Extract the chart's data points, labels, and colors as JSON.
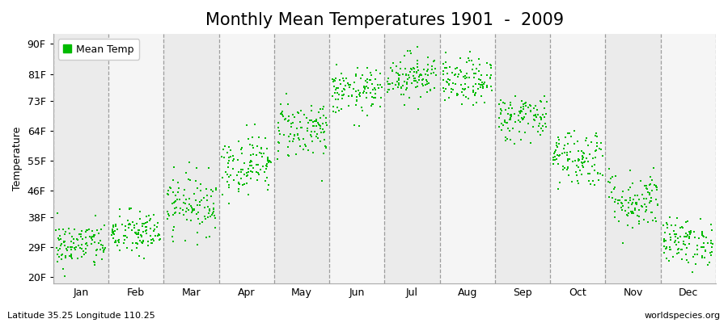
{
  "title": "Monthly Mean Temperatures 1901  -  2009",
  "ylabel": "Temperature",
  "yticks": [
    20,
    29,
    38,
    46,
    55,
    64,
    73,
    81,
    90
  ],
  "ytick_labels": [
    "20F",
    "29F",
    "38F",
    "46F",
    "55F",
    "64F",
    "73F",
    "81F",
    "90F"
  ],
  "ylim": [
    18,
    93
  ],
  "months": [
    "Jan",
    "Feb",
    "Mar",
    "Apr",
    "May",
    "Jun",
    "Jul",
    "Aug",
    "Sep",
    "Oct",
    "Nov",
    "Dec"
  ],
  "monthly_means_F": [
    29.5,
    33.0,
    42.0,
    54.0,
    64.5,
    75.5,
    80.5,
    78.5,
    68.0,
    56.0,
    43.0,
    30.5
  ],
  "monthly_stds_F": [
    3.5,
    3.5,
    4.5,
    4.5,
    4.5,
    3.5,
    3.5,
    3.5,
    3.5,
    4.5,
    4.5,
    3.5
  ],
  "dot_color": "#00bb00",
  "background_color": "#ffffff",
  "band_colors": [
    "#ebebeb",
    "#f5f5f5"
  ],
  "legend_label": "Mean Temp",
  "n_years": 109,
  "subtitle_left": "Latitude 35.25 Longitude 110.25",
  "subtitle_right": "worldspecies.org",
  "title_fontsize": 15,
  "axis_fontsize": 9,
  "tick_fontsize": 9
}
